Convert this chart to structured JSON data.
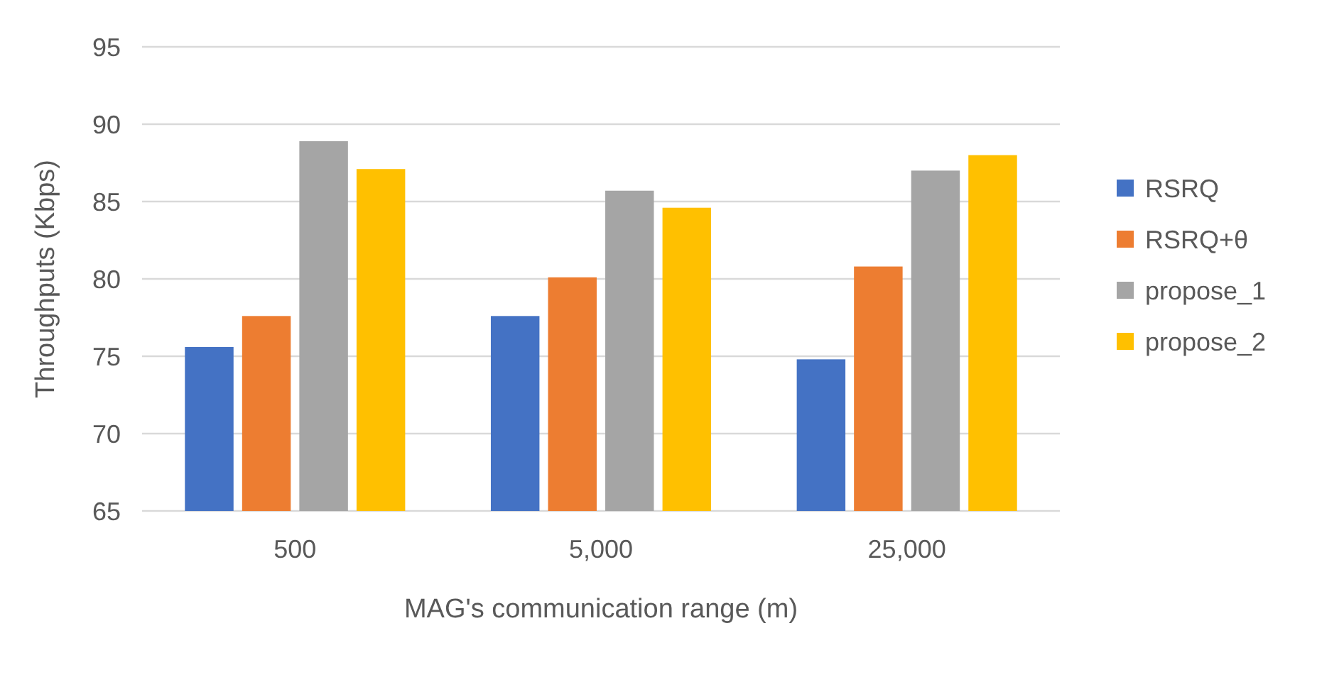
{
  "chart_data": {
    "type": "bar",
    "xlabel": "MAG's communication range (m)",
    "ylabel": "Throughputs (Kbps)",
    "categories": [
      "500",
      "5,000",
      "25,000"
    ],
    "series": [
      {
        "name": "RSRQ",
        "color": "#4472c4",
        "values": [
          75.6,
          77.6,
          74.8
        ]
      },
      {
        "name": "RSRQ+θ",
        "color": "#ed7d31",
        "values": [
          77.6,
          80.1,
          80.8
        ]
      },
      {
        "name": "propose_1",
        "color": "#a5a5a5",
        "values": [
          88.9,
          85.7,
          87.0
        ]
      },
      {
        "name": "propose_2",
        "color": "#ffc000",
        "values": [
          87.1,
          84.6,
          88.0
        ]
      }
    ],
    "ylim": [
      65,
      95
    ],
    "yticks": [
      65,
      70,
      75,
      80,
      85,
      90,
      95
    ],
    "grid": "y",
    "legend": "right"
  }
}
